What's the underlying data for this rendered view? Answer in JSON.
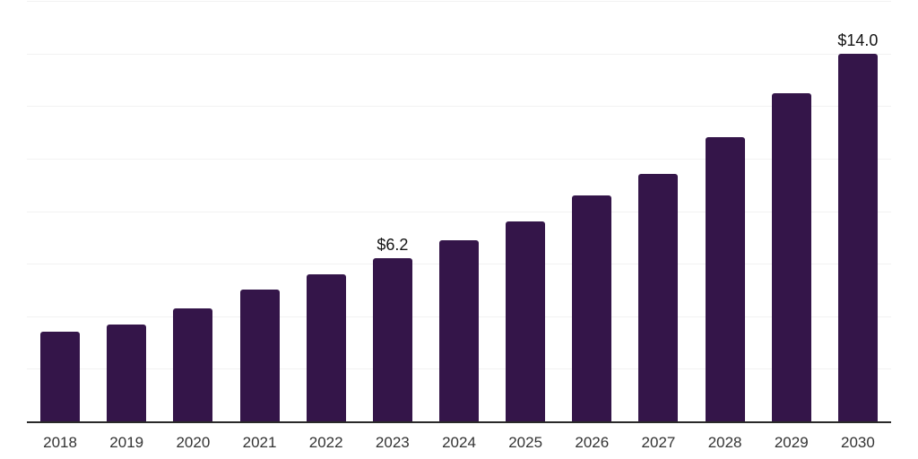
{
  "chart_data": {
    "type": "bar",
    "title": "",
    "xlabel": "",
    "ylabel": "",
    "categories": [
      "2018",
      "2019",
      "2020",
      "2021",
      "2022",
      "2023",
      "2024",
      "2025",
      "2026",
      "2027",
      "2028",
      "2029",
      "2030"
    ],
    "values": [
      3.4,
      3.7,
      4.3,
      5.0,
      5.6,
      6.2,
      6.9,
      7.6,
      8.6,
      9.4,
      10.8,
      12.5,
      14.0
    ],
    "data_labels": [
      "",
      "",
      "",
      "",
      "",
      "$6.2",
      "",
      "",
      "",
      "",
      "",
      "",
      "$14.0"
    ],
    "ylim": [
      0,
      16
    ],
    "gridline_step": 2,
    "grid": "horizontal light-grey lines only",
    "y_axis_tick_labels": "none",
    "legend": "none",
    "series_name": "value-by-year"
  },
  "colors": {
    "bar": "#341549",
    "grid_line": "#f2f2f2",
    "axis_line": "#2a2a2a",
    "tick_label": "#333333",
    "data_label": "#141414",
    "background": "#ffffff"
  }
}
